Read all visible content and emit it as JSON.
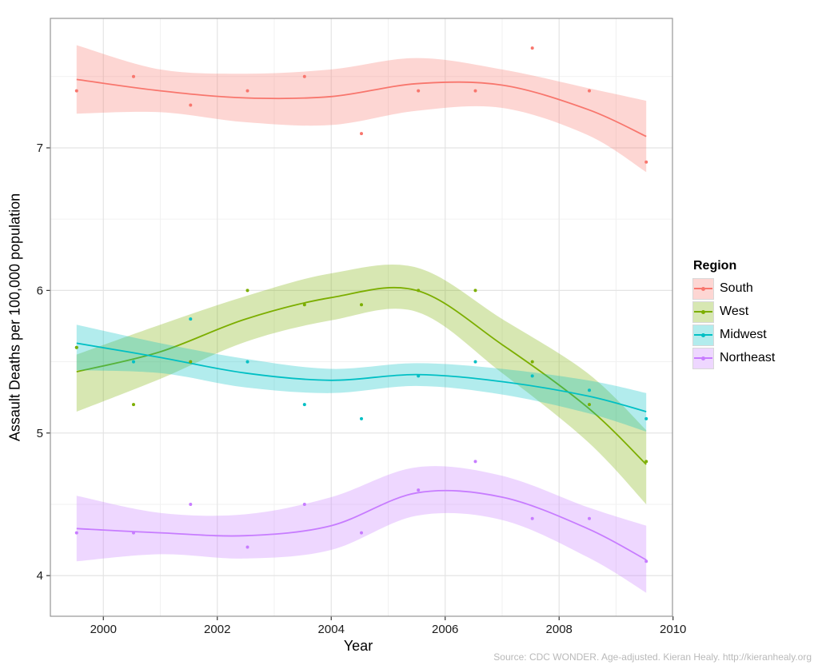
{
  "chart_data": {
    "type": "scatter",
    "subtype": "points-with-loess-smooth-and-confidence-bands",
    "title": "",
    "xlabel": "Year",
    "ylabel": "Assault Deaths per 100,000 population",
    "source": "Source: CDC WONDER. Age-adjusted. Kieran Healy. http://kieranhealy.org",
    "legend": {
      "title": "Region",
      "position": "right"
    },
    "x_ticks": [
      "2000",
      "2002",
      "2004",
      "2006",
      "2008",
      "2010"
    ],
    "x_tick_values": [
      2000,
      2002,
      2004,
      2006,
      2008,
      2010
    ],
    "x_minor": [
      2001,
      2003,
      2005,
      2007,
      2009
    ],
    "y_ticks": [
      "4",
      "5",
      "6",
      "7"
    ],
    "y_tick_values": [
      4,
      5,
      6,
      7
    ],
    "y_minor": [
      4.5,
      5.5,
      6.5,
      7.5
    ],
    "x_range": [
      1999.07,
      2009.99
    ],
    "y_range": [
      3.715,
      7.908
    ],
    "grid_on": true,
    "years": [
      1999,
      2000,
      2001,
      2002,
      2003,
      2004,
      2005,
      2006,
      2007,
      2008,
      2009
    ],
    "point_x_offset": 0.53,
    "smooth_x": [
      1999.53,
      2001,
      2002.5,
      2004,
      2005.5,
      2007,
      2008.5,
      2009.53
    ],
    "series": [
      {
        "name": "South",
        "color": "#F8766D",
        "values": [
          7.4,
          7.5,
          7.3,
          7.4,
          7.5,
          7.1,
          7.4,
          7.4,
          7.7,
          7.4,
          6.9
        ],
        "smooth_line": [
          7.48,
          7.4,
          7.35,
          7.36,
          7.45,
          7.44,
          7.27,
          7.08
        ],
        "smooth_upper": [
          7.72,
          7.55,
          7.52,
          7.55,
          7.63,
          7.55,
          7.42,
          7.33
        ],
        "smooth_lower": [
          7.24,
          7.25,
          7.18,
          7.16,
          7.26,
          7.28,
          7.09,
          6.83
        ]
      },
      {
        "name": "West",
        "color": "#7CAE00",
        "values": [
          5.6,
          5.2,
          5.5,
          6.0,
          5.9,
          5.9,
          6.0,
          6.0,
          5.5,
          5.2,
          4.8
        ],
        "smooth_line": [
          5.43,
          5.57,
          5.8,
          5.95,
          6.0,
          5.62,
          5.18,
          4.78
        ],
        "smooth_upper": [
          5.55,
          5.76,
          5.96,
          6.12,
          6.16,
          5.8,
          5.42,
          5.02
        ],
        "smooth_lower": [
          5.15,
          5.38,
          5.64,
          5.79,
          5.85,
          5.42,
          4.94,
          4.5
        ]
      },
      {
        "name": "Midwest",
        "color": "#00BFC4",
        "values": [
          5.6,
          5.5,
          5.8,
          5.5,
          5.2,
          5.1,
          5.4,
          5.5,
          5.4,
          5.3,
          5.1
        ],
        "smooth_line": [
          5.63,
          5.53,
          5.42,
          5.37,
          5.41,
          5.36,
          5.26,
          5.15
        ],
        "smooth_upper": [
          5.76,
          5.63,
          5.52,
          5.45,
          5.49,
          5.45,
          5.37,
          5.28
        ],
        "smooth_lower": [
          5.44,
          5.42,
          5.32,
          5.28,
          5.33,
          5.27,
          5.14,
          5.01
        ]
      },
      {
        "name": "Northeast",
        "color": "#C77CFF",
        "values": [
          4.3,
          4.3,
          4.5,
          4.2,
          4.5,
          4.3,
          4.6,
          4.8,
          4.4,
          4.4,
          4.1
        ],
        "smooth_line": [
          4.33,
          4.3,
          4.28,
          4.35,
          4.58,
          4.55,
          4.33,
          4.11
        ],
        "smooth_upper": [
          4.56,
          4.44,
          4.43,
          4.55,
          4.76,
          4.7,
          4.48,
          4.35
        ],
        "smooth_lower": [
          4.1,
          4.15,
          4.12,
          4.18,
          4.42,
          4.39,
          4.13,
          3.88
        ]
      }
    ],
    "band_opacity": 0.3,
    "colors": {
      "grid_major": "#e4e4e4",
      "grid_minor": "#f1f1f1",
      "panel_border": "#979797",
      "tick_mark": "#333333",
      "tick_text": "#1a1a1a",
      "source_text": "#b9b9b9"
    }
  }
}
